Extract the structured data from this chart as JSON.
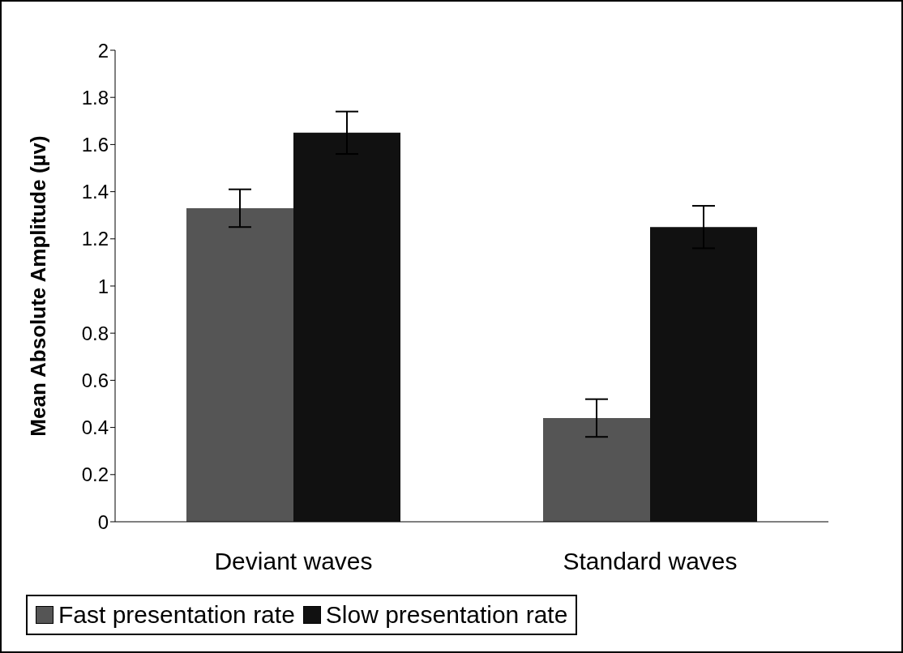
{
  "chart_data": {
    "type": "bar",
    "ylabel": "Mean Absolute Amplitude (µv)",
    "categories": [
      "Deviant waves",
      "Standard waves"
    ],
    "series": [
      {
        "name": "Fast presentation rate",
        "color": "#555555",
        "values": [
          1.33,
          0.44
        ],
        "errors": [
          0.08,
          0.08
        ]
      },
      {
        "name": "Slow presentation rate",
        "color": "#111111",
        "values": [
          1.65,
          1.25
        ],
        "errors": [
          0.09,
          0.09
        ]
      }
    ],
    "ylim": [
      0,
      2
    ],
    "yticks": [
      0,
      0.2,
      0.4,
      0.6,
      0.8,
      1,
      1.2,
      1.4,
      1.6,
      1.8,
      2
    ],
    "grid": false,
    "legend": "bottom"
  }
}
